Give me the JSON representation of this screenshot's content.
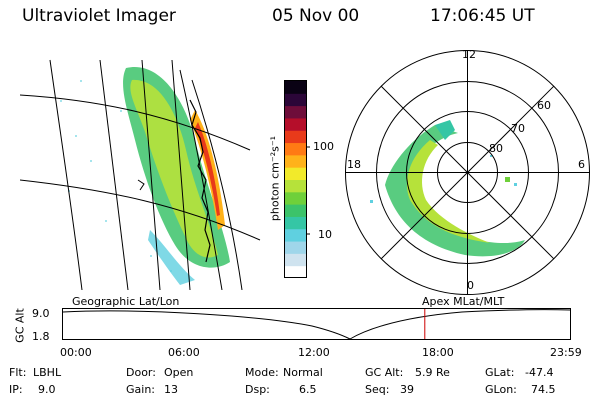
{
  "header": {
    "instrument": "Ultraviolet Imager",
    "date": "05 Nov 00",
    "time": "17:06:45 UT"
  },
  "colorbar": {
    "unit_label": "photon cm⁻²s⁻¹",
    "scale": "log",
    "ticks": [
      "100",
      "10"
    ],
    "colors": [
      "#ffffff",
      "#cfe3ef",
      "#9fd6ea",
      "#5fd0e0",
      "#35c6a5",
      "#3cc36a",
      "#6fd03a",
      "#b6e23a",
      "#f2ea2a",
      "#ffb21a",
      "#ff7a14",
      "#e83a1a",
      "#b50e2a",
      "#6e0d3a",
      "#2b0638",
      "#0a0214"
    ]
  },
  "polar_plot": {
    "mlt_labels": [
      "12",
      "18",
      "6",
      "0"
    ],
    "lat_labels": [
      "60",
      "70",
      "80"
    ]
  },
  "timeline": {
    "left_label": "Geographic Lat/Lon",
    "right_label": "Apex MLat/MLT",
    "y_axis_label": "GC Alt",
    "y_ticks": [
      "9.0",
      "1.8"
    ],
    "x_ticks": [
      "00:00",
      "06:00",
      "12:00",
      "18:00",
      "23:59"
    ],
    "current_time_marker": "17:06:45",
    "marker_color": "#cc0000"
  },
  "status": {
    "flt_label": "Flt:",
    "flt_value": "LBHL",
    "ip_label": "IP:",
    "ip_value": "9.0",
    "door_label": "Door:",
    "door_value": "Open",
    "gain_label": "Gain:",
    "gain_value": "13",
    "mode_label": "Mode:",
    "mode_value": "Normal",
    "dsp_label": "Dsp:",
    "dsp_value": "6.5",
    "gcalt_label": "GC Alt:",
    "gcalt_value": "5.9 Re",
    "seq_label": "Seq:",
    "seq_value": "39",
    "glat_label": "GLat:",
    "glat_value": "-47.4",
    "glon_label": "GLon:",
    "glon_value": "74.5"
  }
}
